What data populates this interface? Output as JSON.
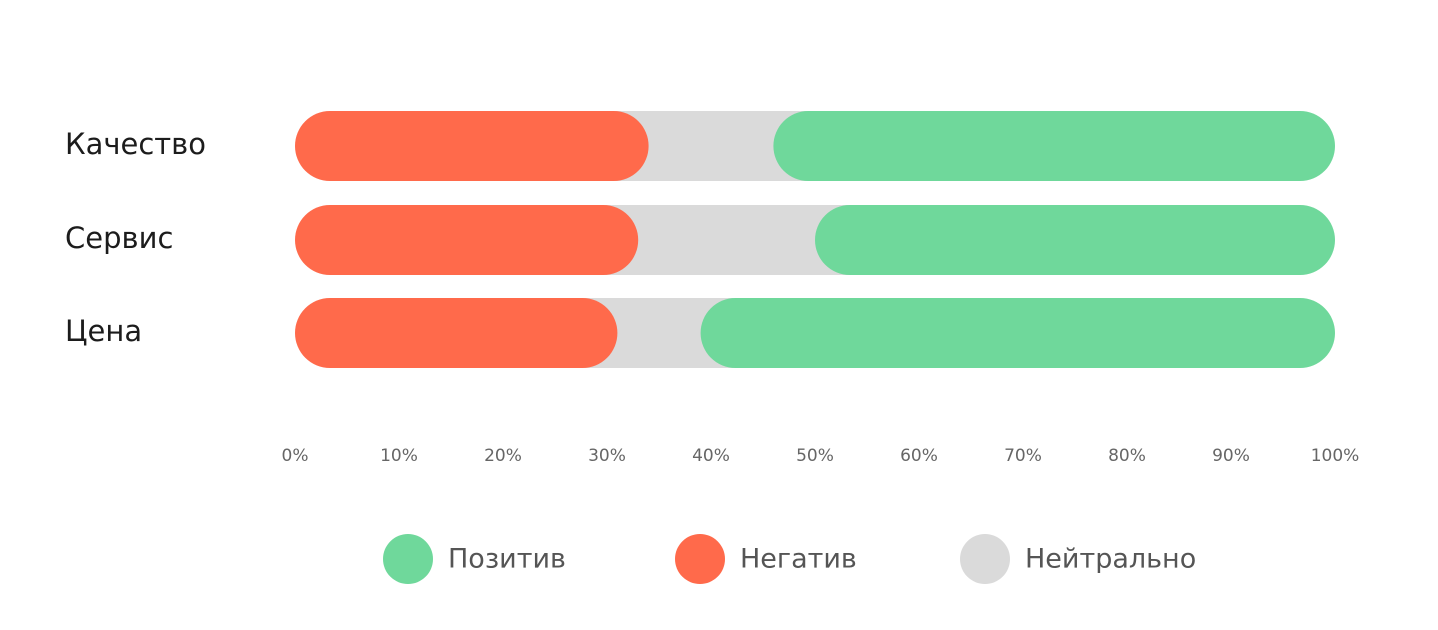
{
  "chart_data": {
    "type": "stacked-bar-horizontal",
    "categories": [
      "Качество",
      "Сервис",
      "Цена"
    ],
    "series": [
      {
        "name": "Позитив",
        "color": "#6fd89b",
        "values": [
          54,
          50,
          61
        ]
      },
      {
        "name": "Негатив",
        "color": "#ff6a4b",
        "values": [
          34,
          33,
          31
        ]
      },
      {
        "name": "Нейтрально",
        "color": "#dadada",
        "values": [
          12,
          17,
          8
        ]
      }
    ],
    "xlim": [
      0,
      100
    ],
    "xticks": [
      {
        "value": 0,
        "label": "0%"
      },
      {
        "value": 10,
        "label": "10%"
      },
      {
        "value": 20,
        "label": "20%"
      },
      {
        "value": 30,
        "label": "30%"
      },
      {
        "value": 40,
        "label": "40%"
      },
      {
        "value": 50,
        "label": "50%"
      },
      {
        "value": 60,
        "label": "60%"
      },
      {
        "value": 70,
        "label": "70%"
      },
      {
        "value": 80,
        "label": "80%"
      },
      {
        "value": 90,
        "label": "90%"
      },
      {
        "value": 100,
        "label": "100%"
      }
    ],
    "legend": "bottom"
  }
}
